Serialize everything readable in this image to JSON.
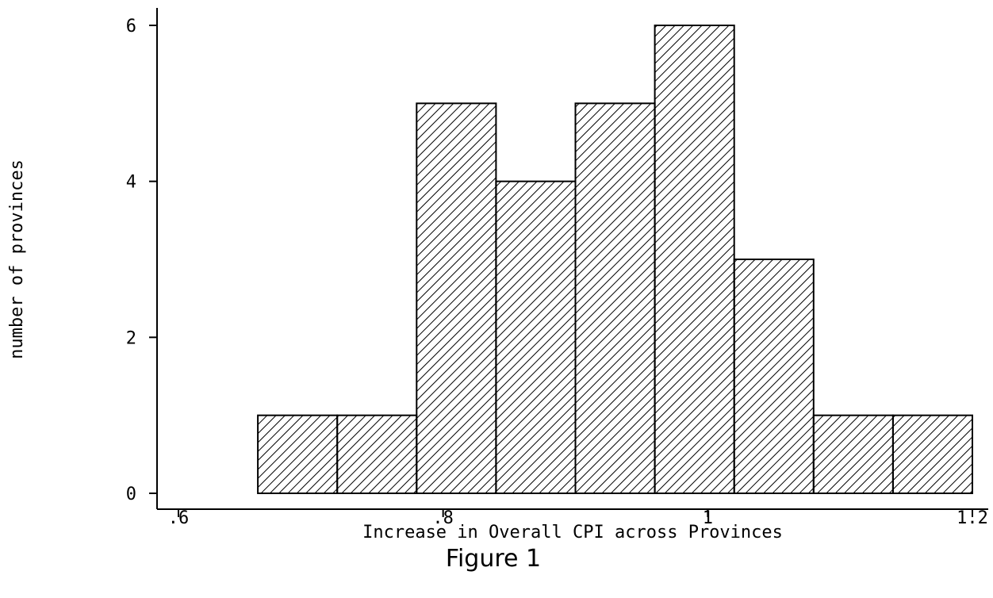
{
  "chart_data": {
    "type": "bar",
    "bins": [
      {
        "x0": 0.66,
        "x1": 0.72,
        "count": 1
      },
      {
        "x0": 0.72,
        "x1": 0.78,
        "count": 1
      },
      {
        "x0": 0.78,
        "x1": 0.84,
        "count": 5
      },
      {
        "x0": 0.84,
        "x1": 0.9,
        "count": 4
      },
      {
        "x0": 0.9,
        "x1": 0.96,
        "count": 5
      },
      {
        "x0": 0.96,
        "x1": 1.02,
        "count": 6
      },
      {
        "x0": 1.02,
        "x1": 1.08,
        "count": 3
      },
      {
        "x0": 1.08,
        "x1": 1.14,
        "count": 1
      },
      {
        "x0": 1.14,
        "x1": 1.2,
        "count": 1
      }
    ],
    "xlabel": "Increase in Overall CPI across Provinces",
    "ylabel": "number of provinces",
    "xlim": [
      0.58,
      1.22
    ],
    "ylim": [
      0,
      6.2
    ],
    "x_ticks": [
      0.6,
      0.8,
      1,
      1.2
    ],
    "x_tick_labels": [
      ".6",
      ".8",
      "1",
      "1.2"
    ],
    "y_ticks": [
      0,
      2,
      4,
      6
    ],
    "y_tick_labels": [
      "0",
      "2",
      "4",
      "6"
    ],
    "fill": "diagonal-hatch",
    "grid": false,
    "legend": "none"
  },
  "caption": "Figure 1",
  "colors": {
    "stroke": "#000000",
    "background": "#ffffff"
  }
}
